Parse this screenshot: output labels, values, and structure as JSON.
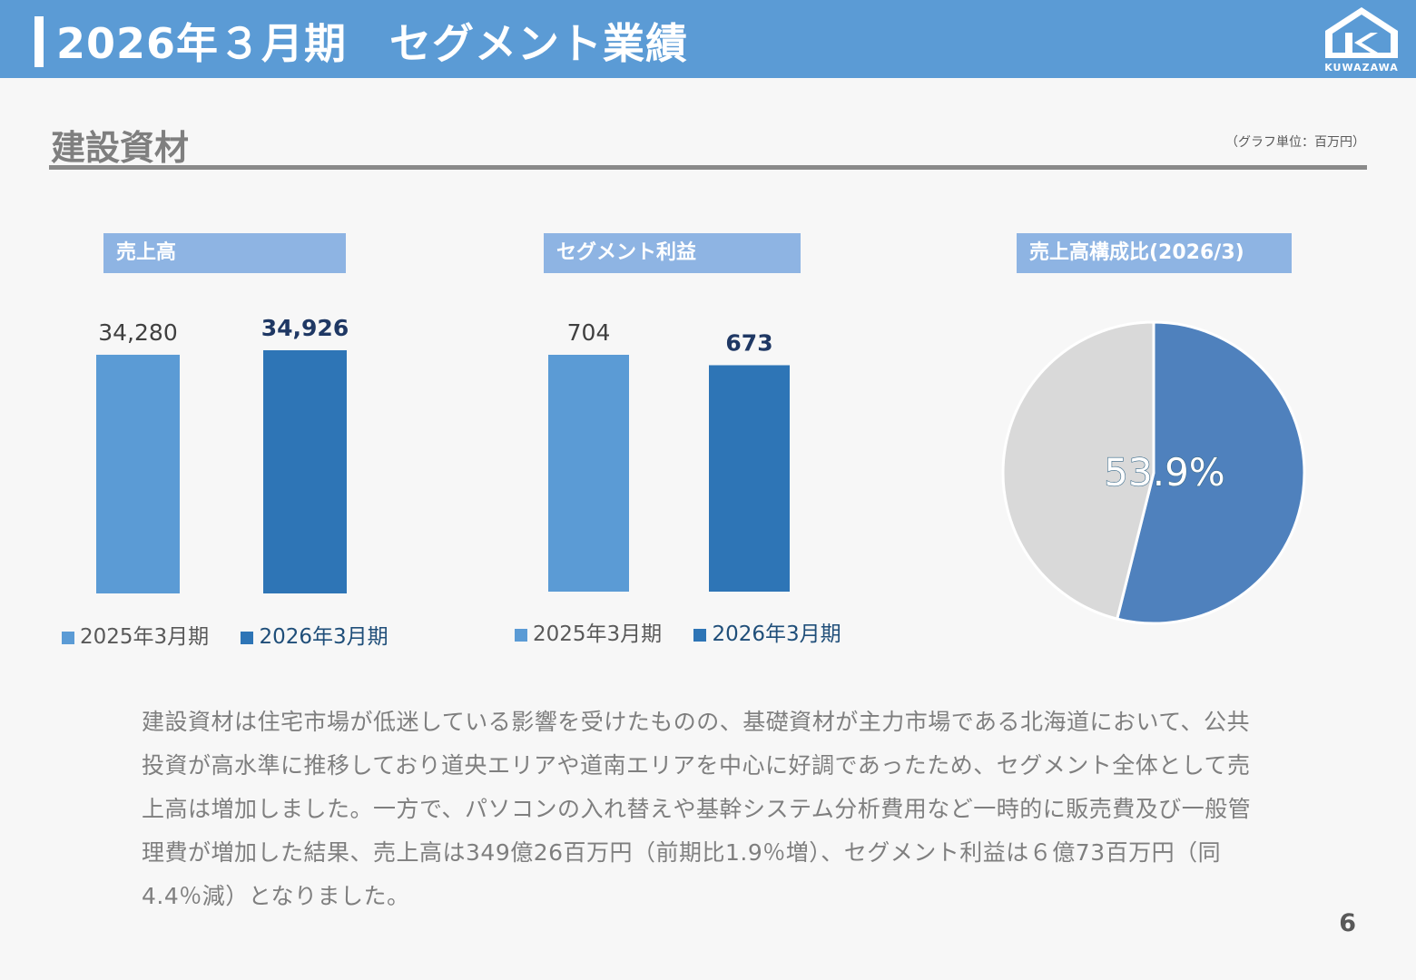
{
  "header": {
    "title": "2026年３月期　セグメント業績",
    "brand": "KUWAZAWA"
  },
  "section": {
    "title": "建設資材",
    "unit_note": "（グラフ単位：百万円）"
  },
  "charts": {
    "sales_label": "売上高",
    "profit_label": "セグメント利益",
    "composition_label": "売上高構成比(2026/3)"
  },
  "chart_data": [
    {
      "type": "bar",
      "title": "売上高",
      "categories": [
        "2025年3月期",
        "2026年3月期"
      ],
      "values": [
        34280,
        34926
      ],
      "value_labels": [
        "34,280",
        "34,926"
      ],
      "colors": [
        "#5b9bd5",
        "#2e75b6"
      ]
    },
    {
      "type": "bar",
      "title": "セグメント利益",
      "categories": [
        "2025年3月期",
        "2026年3月期"
      ],
      "values": [
        704,
        673
      ],
      "value_labels": [
        "704",
        "673"
      ],
      "colors": [
        "#5b9bd5",
        "#2e75b6"
      ]
    },
    {
      "type": "pie",
      "title": "売上高構成比(2026/3)",
      "values": [
        53.9,
        46.1
      ],
      "value_label": "53.9%",
      "colors": [
        "#4f81bd",
        "#d9d9d9"
      ]
    }
  ],
  "legend": {
    "prev": "2025年3月期",
    "curr": "2026年3月期",
    "prev_color": "#5b9bd5",
    "curr_color": "#2e75b6"
  },
  "body": {
    "text": "建設資材は住宅市場が低迷している影響を受けたものの、基礎資材が主力市場である北海道において、公共投資が高水準に推移しており道央エリアや道南エリアを中心に好調であったため、セグメント全体として売上高は増加しました。一方で、パソコンの入れ替えや基幹システム分析費用など一時的に販売費及び一般管理費が増加した結果、売上高は349億26百万円（前期比1.9％増）、セグメント利益は６億73百万円（同4.4％減）となりました。"
  },
  "page_number": "6"
}
